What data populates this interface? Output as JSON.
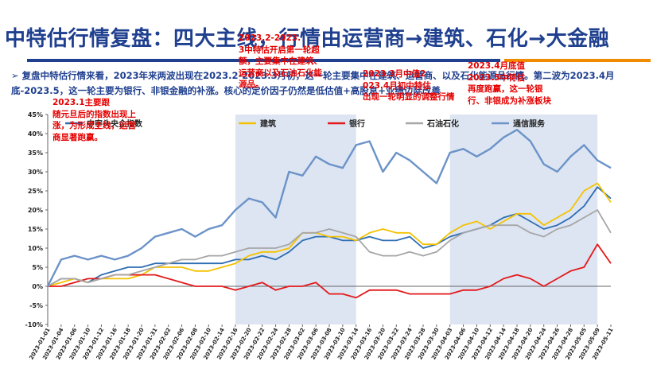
{
  "page": {
    "title": "中特估行情复盘：四大主线，行情由运营商→建筑、石化→大金融",
    "summary_marker": "➢",
    "summary": "复盘中特估行情来看，2023年来两波出现在2023.2-2023.3月初，这一轮主要集中在建筑、运营商、以及石化能源品行情。第二波为2023.4月底-2023.5，这一轮主要为银行、非银金融的补涨。核心的定价因子仍然是低估值+高股息+业绩边际改善"
  },
  "colors": {
    "title": "#1f3f8f",
    "accent_orange": "#f08a00",
    "annotation": "#e60000",
    "shading": "#dde5f2"
  },
  "annotations": [
    "2023.1主要跟随元旦后的指数出现上涨，为形成主线，运营商显著跑赢。",
    "2023.2-2023.3中特估开启第一轮超额，主要集中在建筑、运营商以及石油石化能源品。",
    "2023.3月中值2023.4月初中特估出现一轮明显的调整行情",
    "2023.4月底值2023.5中特估再度跑赢，这一轮银行、非银成为补涨板块"
  ],
  "chart_data": {
    "type": "line",
    "ylim": [
      -10,
      45
    ],
    "ytick_step": 5,
    "y_unit": "%",
    "grid": false,
    "legend_position": "top",
    "shaded_periods": [
      [
        "2023-02-16",
        "2023-03-14"
      ],
      [
        "2023-04-03",
        "2023-05-09"
      ]
    ],
    "x_ticks": [
      "2023-01-01",
      "2023-01-04",
      "2023-01-06",
      "2023-01-10",
      "2023-01-12",
      "2023-01-16",
      "2023-01-18",
      "2023-01-20",
      "2023-01-31",
      "2023-02-02",
      "2023-02-06",
      "2023-02-08",
      "2023-02-10",
      "2023-02-14",
      "2023-02-16",
      "2023-02-20",
      "2023-02-22",
      "2023-02-24",
      "2023-02-28",
      "2023-03-02",
      "2023-03-06",
      "2023-03-08",
      "2023-03-10",
      "2023-03-14",
      "2023-03-16",
      "2023-03-20",
      "2023-03-22",
      "2023-03-24",
      "2023-03-28",
      "2023-03-30",
      "2023-04-03",
      "2023-04-06",
      "2023-04-10",
      "2023-04-12",
      "2023-04-14",
      "2023-04-18",
      "2023-04-20",
      "2023-04-24",
      "2023-04-26",
      "2023-04-28",
      "2023-05-05",
      "2023-05-09",
      "2023-05-11"
    ],
    "series": [
      {
        "name": "中字头央企指数",
        "color": "#2e6db3",
        "values": [
          0,
          2,
          2,
          1,
          3,
          4,
          5,
          5,
          6,
          6,
          6,
          6,
          6,
          6,
          7,
          7,
          8,
          7,
          9,
          12,
          13,
          13,
          12,
          12,
          13,
          12,
          12,
          13,
          10,
          11,
          13,
          14,
          15,
          16,
          18,
          19,
          17,
          15,
          16,
          18,
          21,
          26,
          23
        ]
      },
      {
        "name": "建筑",
        "color": "#f5c200",
        "values": [
          0,
          1,
          2,
          1,
          2,
          2,
          2,
          3,
          5,
          5,
          5,
          4,
          4,
          5,
          6,
          8,
          9,
          9,
          10,
          14,
          14,
          13,
          13,
          12,
          14,
          15,
          14,
          14,
          11,
          11,
          14,
          16,
          17,
          15,
          17,
          19,
          19,
          16,
          18,
          20,
          25,
          27,
          22
        ]
      },
      {
        "name": "银行",
        "color": "#e31a1c",
        "values": [
          0,
          0,
          1,
          2,
          2,
          3,
          3,
          3,
          3,
          2,
          1,
          0,
          0,
          0,
          -1,
          0,
          1,
          -1,
          0,
          0,
          1,
          -2,
          -2,
          -3,
          -1,
          -1,
          -1,
          -2,
          -2,
          -2,
          -2,
          -1,
          -1,
          0,
          2,
          3,
          2,
          0,
          2,
          4,
          5,
          11,
          6
        ]
      },
      {
        "name": "石油石化",
        "color": "#a6a6a6",
        "values": [
          0,
          2,
          2,
          1,
          2,
          3,
          3,
          4,
          5,
          6,
          7,
          7,
          8,
          8,
          9,
          10,
          10,
          10,
          11,
          14,
          14,
          15,
          14,
          13,
          9,
          8,
          8,
          9,
          8,
          9,
          12,
          14,
          15,
          16,
          16,
          16,
          14,
          13,
          15,
          16,
          18,
          20,
          14
        ]
      },
      {
        "name": "通信服务",
        "color": "#6b93c8",
        "values": [
          0,
          7,
          8,
          7,
          8,
          7,
          8,
          10,
          13,
          14,
          15,
          13,
          15,
          16,
          20,
          23,
          22,
          18,
          30,
          29,
          34,
          32,
          31,
          37,
          38,
          30,
          35,
          33,
          30,
          27,
          35,
          36,
          34,
          36,
          39,
          41,
          38,
          32,
          30,
          34,
          37,
          33,
          31
        ]
      }
    ]
  }
}
